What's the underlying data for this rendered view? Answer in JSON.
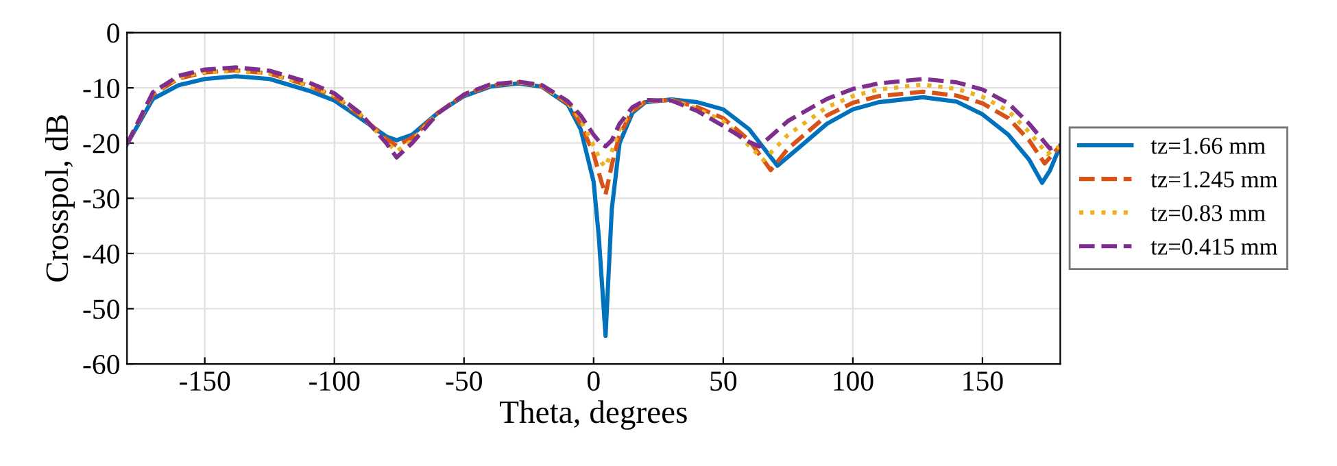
{
  "chart_data": {
    "type": "line",
    "xlabel": "Theta, degrees",
    "ylabel": "Crosspol, dB",
    "xlim": [
      -180,
      180
    ],
    "xticks": [
      -150,
      -100,
      -50,
      0,
      50,
      100,
      150
    ],
    "ylim": [
      -60,
      0
    ],
    "yticks": [
      -60,
      -50,
      -40,
      -30,
      -20,
      -10,
      0
    ],
    "grid": true,
    "legend": "right",
    "series": [
      {
        "name": "tz=1.66 mm",
        "color": "#0072bd",
        "line_style": "solid",
        "x": [
          -180,
          -170,
          -160,
          -150,
          -138,
          -125,
          -110,
          -100,
          -90,
          -80,
          -76,
          -70,
          -60,
          -50,
          -40,
          -29,
          -20,
          -10,
          -5,
          0,
          2,
          4.6,
          7,
          10,
          15,
          20,
          30,
          40,
          50,
          60,
          70.9,
          80,
          90,
          100,
          110,
          127,
          140,
          150,
          160,
          168,
          173,
          176,
          180
        ],
        "values": [
          -20.2,
          -12,
          -9.5,
          -8.4,
          -7.9,
          -8.4,
          -10.5,
          -12.3,
          -15.5,
          -18.8,
          -19.5,
          -18.5,
          -14.5,
          -11.5,
          -9.8,
          -9.2,
          -9.8,
          -13,
          -17.5,
          -27,
          -37,
          -54.9,
          -32,
          -20,
          -14.5,
          -12.6,
          -12.1,
          -12.6,
          -13.9,
          -17.5,
          -24.1,
          -20.5,
          -16.5,
          -13.9,
          -12.6,
          -11.7,
          -12.5,
          -14.8,
          -18.5,
          -23,
          -27.2,
          -25,
          -20.5
        ]
      },
      {
        "name": "tz=1.245 mm",
        "color": "#d95319",
        "line_style": "dashed",
        "x": [
          -180,
          -170,
          -160,
          -150,
          -138,
          -125,
          -110,
          -100,
          -90,
          -80,
          -76,
          -70,
          -60,
          -50,
          -40,
          -29,
          -20,
          -10,
          -5,
          0,
          3,
          4.6,
          7,
          10,
          15,
          20,
          30,
          40,
          50,
          60,
          68.3,
          75,
          90,
          100,
          110,
          127,
          140,
          150,
          160,
          168,
          174,
          180
        ],
        "values": [
          -20.2,
          -11.2,
          -8.3,
          -7.2,
          -6.8,
          -7.4,
          -9.6,
          -11.6,
          -15,
          -19.2,
          -20.5,
          -19,
          -14.5,
          -11.3,
          -9.6,
          -9,
          -9.7,
          -12.8,
          -16.5,
          -22,
          -27,
          -29.3,
          -24,
          -18.5,
          -14.2,
          -12.5,
          -12.2,
          -13.5,
          -15.5,
          -19.5,
          -24.9,
          -21,
          -15,
          -12.7,
          -11.5,
          -10.7,
          -11.4,
          -12.8,
          -15.5,
          -19.5,
          -23.7,
          -20.5
        ]
      },
      {
        "name": "tz=0.83 mm",
        "color": "#edb120",
        "line_style": "dotted",
        "x": [
          -180,
          -170,
          -160,
          -150,
          -138,
          -125,
          -110,
          -100,
          -90,
          -80,
          -76,
          -70,
          -60,
          -50,
          -40,
          -29,
          -20,
          -10,
          -5,
          0,
          3,
          4.6,
          7,
          10,
          15,
          20,
          30,
          40,
          50,
          60,
          65.6,
          75,
          90,
          100,
          110,
          127,
          140,
          150,
          160,
          168,
          175,
          180
        ],
        "values": [
          -20.2,
          -11,
          -8.1,
          -7.1,
          -7,
          -7.4,
          -9.5,
          -11.4,
          -14.8,
          -19.8,
          -21.5,
          -19.5,
          -14.5,
          -11.2,
          -9.5,
          -9,
          -9.6,
          -12.6,
          -15.8,
          -20.5,
          -23.5,
          -24.3,
          -21.5,
          -17.5,
          -13.8,
          -12.3,
          -12.2,
          -13.8,
          -16,
          -20.5,
          -23.1,
          -18.5,
          -13.5,
          -11.5,
          -10.3,
          -9.4,
          -10.2,
          -11.6,
          -14.2,
          -18,
          -22,
          -20.5
        ]
      },
      {
        "name": "tz=0.415 mm",
        "color": "#7e2f8e",
        "line_style": "dashed",
        "x": [
          -180,
          -170,
          -160,
          -150,
          -138,
          -125,
          -110,
          -100,
          -90,
          -80,
          -76,
          -70,
          -60,
          -50,
          -40,
          -29,
          -20,
          -10,
          -5,
          0,
          3,
          4.6,
          7,
          10,
          15,
          20,
          30,
          40,
          50,
          60,
          63.9,
          75,
          90,
          100,
          110,
          127,
          140,
          150,
          160,
          168,
          176,
          180
        ],
        "values": [
          -20.2,
          -10.8,
          -7.8,
          -6.7,
          -6.3,
          -6.9,
          -9,
          -11,
          -14.6,
          -20,
          -22.6,
          -20,
          -14.6,
          -11.2,
          -9.4,
          -8.9,
          -9.5,
          -12.4,
          -15,
          -18.5,
          -20.2,
          -20.6,
          -19.5,
          -16.5,
          -13.5,
          -12.2,
          -12.3,
          -14.2,
          -16.9,
          -19.8,
          -20.6,
          -16,
          -12,
          -10.2,
          -9.2,
          -8.4,
          -9,
          -10.3,
          -12.8,
          -16.5,
          -21,
          -20.5
        ]
      }
    ]
  }
}
